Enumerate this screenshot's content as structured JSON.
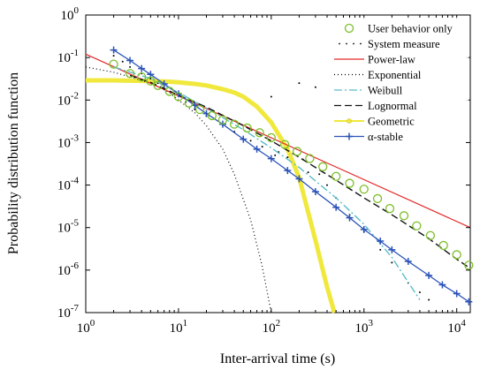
{
  "chart_data": {
    "type": "line",
    "title": "",
    "xlabel": "Inter-arrival time (s)",
    "ylabel": "Probability distribution function",
    "xscale": "log",
    "yscale": "log",
    "xlim": [
      1,
      14000
    ],
    "ylim": [
      1e-07,
      1
    ],
    "grid": false,
    "legend_position": "top-right",
    "x_ticks": [
      {
        "value": 1,
        "base": "10",
        "exp": "0"
      },
      {
        "value": 10,
        "base": "10",
        "exp": "1"
      },
      {
        "value": 100,
        "base": "10",
        "exp": "2"
      },
      {
        "value": 1000,
        "base": "10",
        "exp": "3"
      },
      {
        "value": 10000,
        "base": "10",
        "exp": "4"
      }
    ],
    "y_ticks": [
      {
        "value": 1,
        "base": "10",
        "exp": "0"
      },
      {
        "value": 0.1,
        "base": "10",
        "exp": "-1"
      },
      {
        "value": 0.01,
        "base": "10",
        "exp": "-2"
      },
      {
        "value": 0.001,
        "base": "10",
        "exp": "-3"
      },
      {
        "value": 0.0001,
        "base": "10",
        "exp": "-4"
      },
      {
        "value": 1e-05,
        "base": "10",
        "exp": "-5"
      },
      {
        "value": 1e-06,
        "base": "10",
        "exp": "-6"
      },
      {
        "value": 1e-07,
        "base": "10",
        "exp": "-7"
      }
    ],
    "series": [
      {
        "name": "User behavior only",
        "style": "circles",
        "color": "#7cbf2a",
        "x": [
          2,
          3,
          4,
          5,
          6,
          8,
          10,
          13,
          17,
          23,
          30,
          40,
          55,
          75,
          100,
          140,
          190,
          260,
          360,
          500,
          700,
          1000,
          1400,
          1900,
          2700,
          3700,
          5200,
          7200,
          10000,
          13500
        ],
        "y": [
          0.07,
          0.042,
          0.035,
          0.028,
          0.022,
          0.016,
          0.012,
          0.0085,
          0.006,
          0.0043,
          0.0034,
          0.0027,
          0.0022,
          0.0017,
          0.0013,
          0.0009,
          0.00062,
          0.00042,
          0.00027,
          0.00016,
          0.00011,
          8e-05,
          4.8e-05,
          2.8e-05,
          1.9e-05,
          1.1e-05,
          6.5e-06,
          3.8e-06,
          2.3e-06,
          1.3e-06
        ]
      },
      {
        "name": "System measure",
        "style": "dots",
        "color": "#000000",
        "x": [
          2,
          2.5,
          3,
          4,
          5,
          6,
          7,
          9,
          12,
          15,
          20,
          30,
          40,
          60,
          80,
          100,
          110,
          120,
          150,
          200,
          220,
          250,
          300,
          330,
          400,
          500,
          700,
          1000,
          1500,
          2000,
          3000,
          4000,
          5000
        ],
        "y": [
          0.11,
          0.08,
          0.06,
          0.042,
          0.032,
          0.025,
          0.02,
          0.014,
          0.009,
          0.006,
          0.0042,
          0.0026,
          0.0018,
          0.0011,
          0.0008,
          0.012,
          0.0005,
          0.0006,
          0.00045,
          0.025,
          0.0004,
          0.0002,
          0.02,
          0.00018,
          0.0001,
          5e-05,
          2e-05,
          8e-06,
          3e-06,
          1.5e-06,
          5e-07,
          3e-07,
          2e-07
        ]
      },
      {
        "name": "Power-law",
        "style": "line",
        "color": "#e32b2b",
        "x": [
          1,
          14000
        ],
        "y": [
          0.12,
          1e-05
        ]
      },
      {
        "name": "Exponential",
        "style": "dotted",
        "color": "#000000",
        "x": [
          1,
          2,
          3,
          5,
          8,
          10,
          15,
          20,
          30,
          40,
          60,
          80,
          100
        ],
        "y": [
          0.06,
          0.045,
          0.035,
          0.025,
          0.015,
          0.01,
          0.005,
          0.0025,
          0.0007,
          0.00018,
          1.5e-05,
          1.2e-06,
          1e-07
        ]
      },
      {
        "name": "Weibull",
        "style": "dashdot",
        "color": "#5bbcc9",
        "x": [
          2,
          5,
          10,
          20,
          50,
          100,
          200,
          500,
          1000,
          2000,
          4000
        ],
        "y": [
          0.06,
          0.032,
          0.015,
          0.0065,
          0.002,
          0.00075,
          0.00026,
          5e-05,
          1.2e-05,
          2e-06,
          2e-07
        ]
      },
      {
        "name": "Lognormal",
        "style": "dashed",
        "color": "#111111",
        "x": [
          3,
          5,
          10,
          20,
          50,
          100,
          200,
          500,
          1000,
          2000,
          5000,
          10000,
          14000
        ],
        "y": [
          0.038,
          0.026,
          0.013,
          0.0068,
          0.0025,
          0.0011,
          0.00045,
          0.00013,
          5e-05,
          2e-05,
          5.5e-06,
          1.8e-06,
          1.1e-06
        ]
      },
      {
        "name": "Geometric",
        "style": "thick-line",
        "color": "#f0e83c",
        "x": [
          1,
          2,
          3,
          5,
          8,
          10,
          15,
          20,
          30,
          40,
          50,
          70,
          100,
          150,
          200,
          300,
          400,
          480
        ],
        "y": [
          0.029,
          0.029,
          0.0285,
          0.028,
          0.027,
          0.026,
          0.024,
          0.022,
          0.018,
          0.015,
          0.012,
          0.007,
          0.003,
          0.0007,
          0.00015,
          5e-06,
          4e-07,
          1e-07
        ]
      },
      {
        "name": "α-stable",
        "style": "line-plus",
        "color": "#2a52b8",
        "x": [
          2,
          3,
          4,
          5,
          7,
          10,
          15,
          20,
          30,
          50,
          70,
          100,
          150,
          200,
          300,
          500,
          700,
          1000,
          1500,
          2000,
          3000,
          5000,
          7000,
          10000,
          13500
        ],
        "y": [
          0.15,
          0.085,
          0.055,
          0.04,
          0.024,
          0.014,
          0.0075,
          0.0048,
          0.0027,
          0.0012,
          0.0007,
          0.00042,
          0.00022,
          0.00014,
          7e-05,
          3e-05,
          1.7e-05,
          9e-06,
          4.8e-06,
          3e-06,
          1.6e-06,
          7.5e-07,
          4.5e-07,
          2.8e-07,
          1.8e-07
        ]
      }
    ]
  }
}
